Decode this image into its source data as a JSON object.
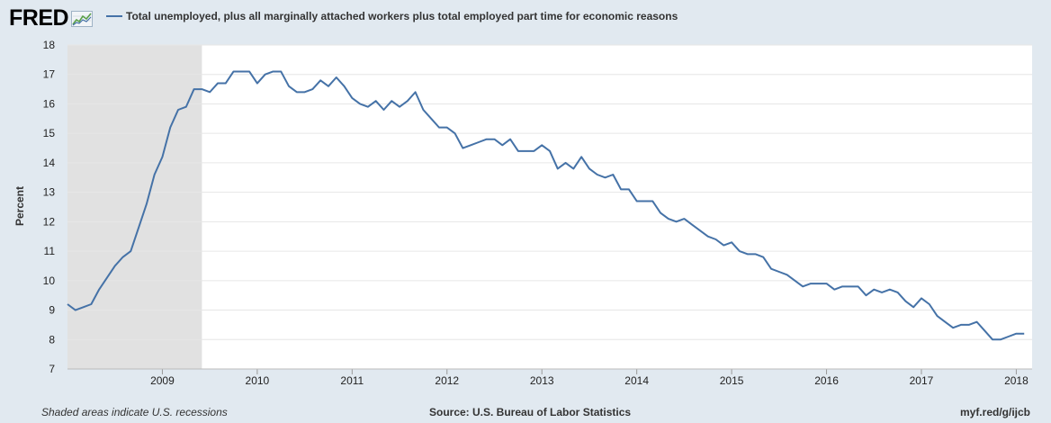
{
  "brand": {
    "name": "FRED",
    "icon": "line-chart-icon"
  },
  "chart_data": {
    "type": "line",
    "title": "",
    "xlabel": "",
    "ylabel": "Percent",
    "ylim": [
      7,
      18
    ],
    "yticks": [
      7,
      8,
      9,
      10,
      11,
      12,
      13,
      14,
      15,
      16,
      17,
      18
    ],
    "xlim": [
      "2008-01",
      "2018-02"
    ],
    "xticks": [
      "2009",
      "2010",
      "2011",
      "2012",
      "2013",
      "2014",
      "2015",
      "2016",
      "2017",
      "2018"
    ],
    "grid": true,
    "legend": "top-left",
    "colors": {
      "series": "#4572a7",
      "recession": "#e1e1e1",
      "background": "#e1e9f0"
    },
    "recessions": [
      {
        "start": "2008-01",
        "end": "2009-06"
      }
    ],
    "series": [
      {
        "name": "Total unemployed, plus all marginally attached workers plus total employed part time for economic reasons",
        "x": [
          "2008-01",
          "2008-02",
          "2008-03",
          "2008-04",
          "2008-05",
          "2008-06",
          "2008-07",
          "2008-08",
          "2008-09",
          "2008-10",
          "2008-11",
          "2008-12",
          "2009-01",
          "2009-02",
          "2009-03",
          "2009-04",
          "2009-05",
          "2009-06",
          "2009-07",
          "2009-08",
          "2009-09",
          "2009-10",
          "2009-11",
          "2009-12",
          "2010-01",
          "2010-02",
          "2010-03",
          "2010-04",
          "2010-05",
          "2010-06",
          "2010-07",
          "2010-08",
          "2010-09",
          "2010-10",
          "2010-11",
          "2010-12",
          "2011-01",
          "2011-02",
          "2011-03",
          "2011-04",
          "2011-05",
          "2011-06",
          "2011-07",
          "2011-08",
          "2011-09",
          "2011-10",
          "2011-11",
          "2011-12",
          "2012-01",
          "2012-02",
          "2012-03",
          "2012-04",
          "2012-05",
          "2012-06",
          "2012-07",
          "2012-08",
          "2012-09",
          "2012-10",
          "2012-11",
          "2012-12",
          "2013-01",
          "2013-02",
          "2013-03",
          "2013-04",
          "2013-05",
          "2013-06",
          "2013-07",
          "2013-08",
          "2013-09",
          "2013-10",
          "2013-11",
          "2013-12",
          "2014-01",
          "2014-02",
          "2014-03",
          "2014-04",
          "2014-05",
          "2014-06",
          "2014-07",
          "2014-08",
          "2014-09",
          "2014-10",
          "2014-11",
          "2014-12",
          "2015-01",
          "2015-02",
          "2015-03",
          "2015-04",
          "2015-05",
          "2015-06",
          "2015-07",
          "2015-08",
          "2015-09",
          "2015-10",
          "2015-11",
          "2015-12",
          "2016-01",
          "2016-02",
          "2016-03",
          "2016-04",
          "2016-05",
          "2016-06",
          "2016-07",
          "2016-08",
          "2016-09",
          "2016-10",
          "2016-11",
          "2016-12",
          "2017-01",
          "2017-02",
          "2017-03",
          "2017-04",
          "2017-05",
          "2017-06",
          "2017-07",
          "2017-08",
          "2017-09",
          "2017-10",
          "2017-11",
          "2017-12",
          "2018-01",
          "2018-02"
        ],
        "values": [
          9.2,
          9.0,
          9.1,
          9.2,
          9.7,
          10.1,
          10.5,
          10.8,
          11.0,
          11.8,
          12.6,
          13.6,
          14.2,
          15.2,
          15.8,
          15.9,
          16.5,
          16.5,
          16.4,
          16.7,
          16.7,
          17.1,
          17.1,
          17.1,
          16.7,
          17.0,
          17.1,
          17.1,
          16.6,
          16.4,
          16.4,
          16.5,
          16.8,
          16.6,
          16.9,
          16.6,
          16.2,
          16.0,
          15.9,
          16.1,
          15.8,
          16.1,
          15.9,
          16.1,
          16.4,
          15.8,
          15.5,
          15.2,
          15.2,
          15.0,
          14.5,
          14.6,
          14.7,
          14.8,
          14.8,
          14.6,
          14.8,
          14.4,
          14.4,
          14.4,
          14.6,
          14.4,
          13.8,
          14.0,
          13.8,
          14.2,
          13.8,
          13.6,
          13.5,
          13.6,
          13.1,
          13.1,
          12.7,
          12.7,
          12.7,
          12.3,
          12.1,
          12.0,
          12.1,
          11.9,
          11.7,
          11.5,
          11.4,
          11.2,
          11.3,
          11.0,
          10.9,
          10.9,
          10.8,
          10.4,
          10.3,
          10.2,
          10.0,
          9.8,
          9.9,
          9.9,
          9.9,
          9.7,
          9.8,
          9.8,
          9.8,
          9.5,
          9.7,
          9.6,
          9.7,
          9.6,
          9.3,
          9.1,
          9.4,
          9.2,
          8.8,
          8.6,
          8.4,
          8.5,
          8.5,
          8.6,
          8.3,
          8.0,
          8.0,
          8.1,
          8.2,
          8.2
        ]
      }
    ]
  },
  "footer": {
    "note": "Shaded areas indicate U.S. recessions",
    "source": "Source: U.S. Bureau of Labor Statistics",
    "shortlink": "myf.red/g/ijcb"
  }
}
